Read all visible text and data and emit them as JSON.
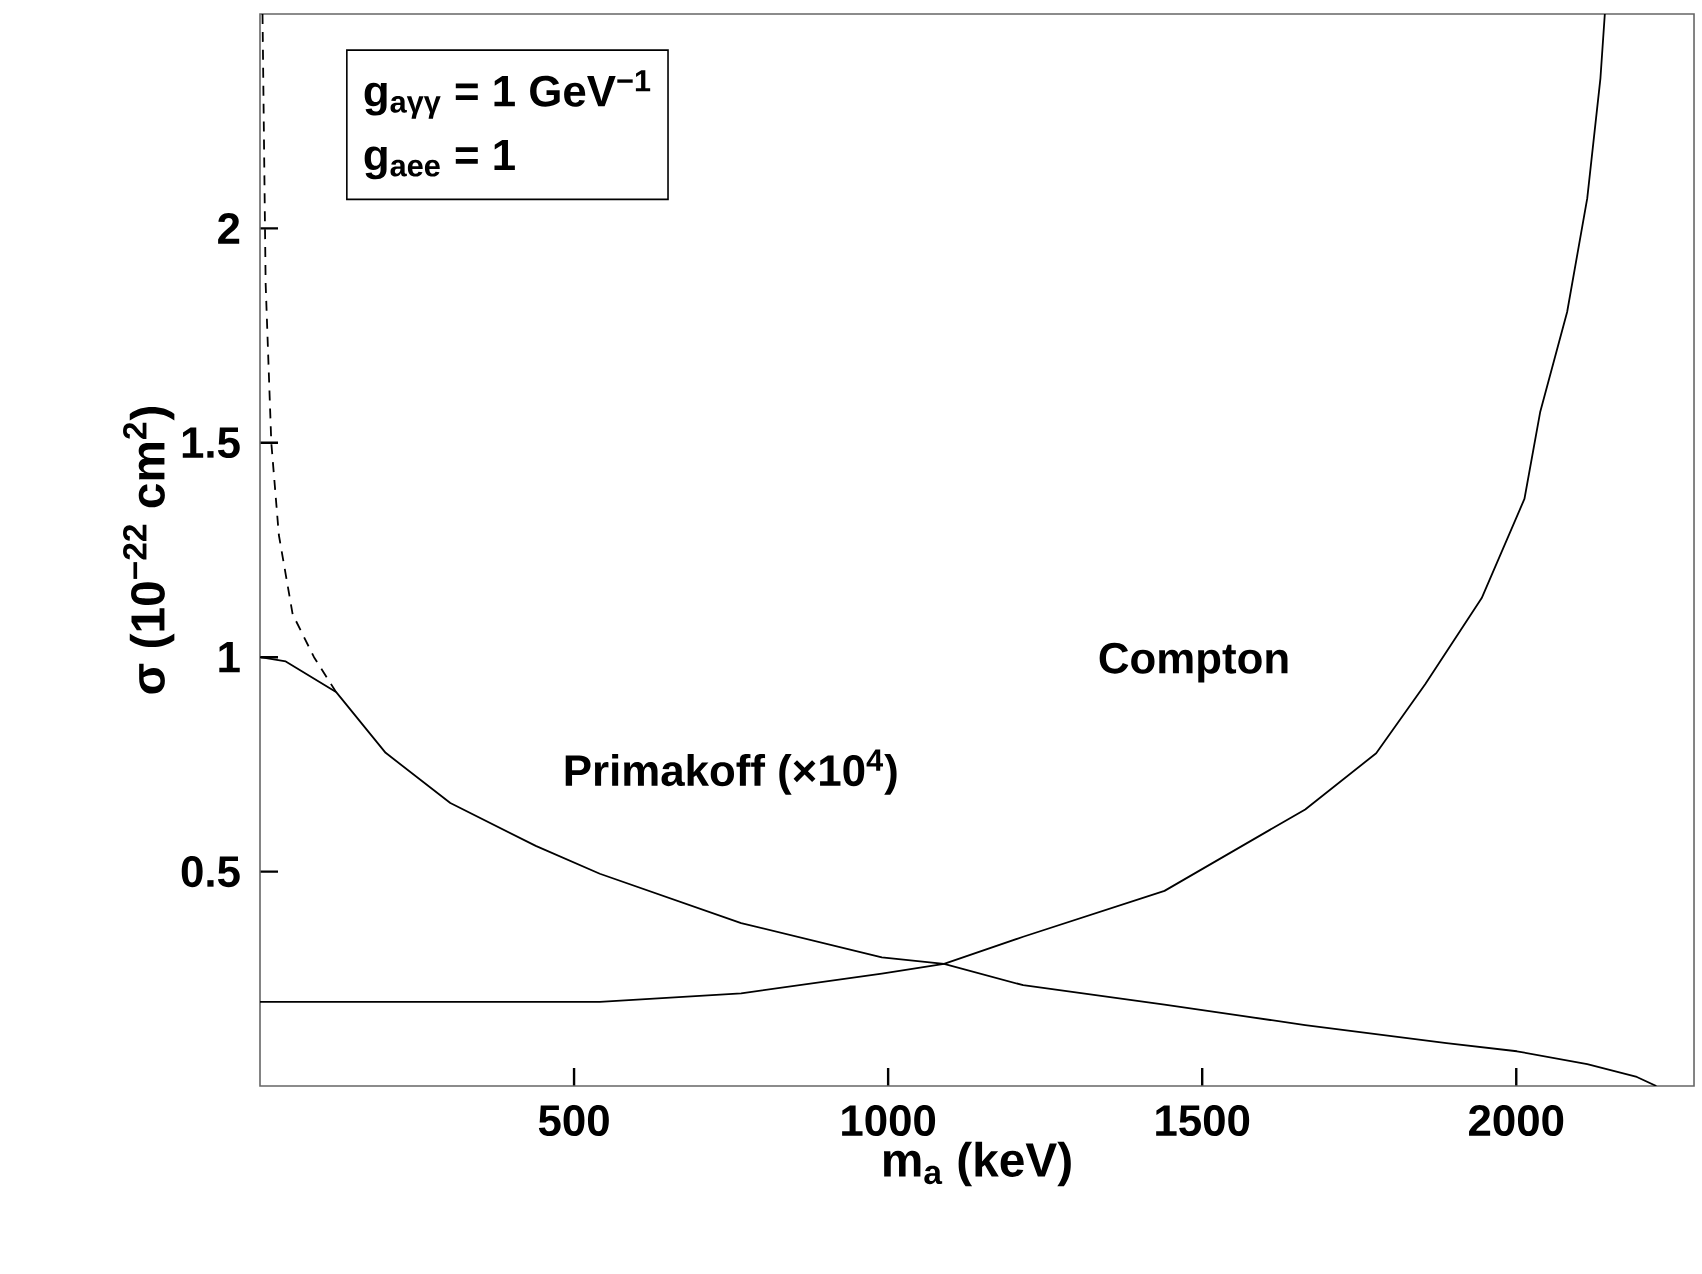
{
  "chart_data": {
    "type": "line",
    "xlabel": "m$_{a}$ (keV)",
    "ylabel": "σ (10$^{−22}$ cm$^{2}$)",
    "annotations": [
      "g$_{aγγ}$ = 1 GeV$^{−1}$",
      "g$_{aee}$ = 1"
    ],
    "xlim": [
      0,
      2283
    ],
    "ylim": [
      0,
      2.5
    ],
    "xticks": [
      500,
      1000,
      1500,
      2000
    ],
    "yticks": [
      0.5,
      1,
      1.5,
      2
    ],
    "series": [
      {
        "name": "Primakoff  (×10$^{4}$)",
        "color": "#000000",
        "line_style": "solid",
        "x": [
          0,
          41,
          121,
          200,
          303,
          439,
          541,
          766,
          990,
          1089,
          1215,
          1440,
          1664,
          1889,
          2001,
          2113,
          2192,
          2223
        ],
        "values": [
          1.0,
          0.99,
          0.919,
          0.777,
          0.66,
          0.56,
          0.495,
          0.38,
          0.3,
          0.285,
          0.235,
          0.19,
          0.142,
          0.1,
          0.081,
          0.051,
          0.021,
          0.0
        ]
      },
      {
        "name": "Compton",
        "color": "#000000",
        "line_style": "solid",
        "x": [
          0,
          250,
          541,
          766,
          990,
          1089,
          1215,
          1440,
          1664,
          1777,
          1855,
          1945,
          2013,
          2038,
          2081,
          2113,
          2134,
          2141
        ],
        "values": [
          0.196,
          0.196,
          0.196,
          0.216,
          0.262,
          0.285,
          0.348,
          0.455,
          0.645,
          0.776,
          0.937,
          1.138,
          1.369,
          1.571,
          1.805,
          2.07,
          2.35,
          2.5
        ]
      },
      {
        "color": "#000000",
        "line_style": "dashed",
        "x": [
          4,
          9,
          18,
          30,
          52,
          86,
          121
        ],
        "values": [
          2.5,
          1.87,
          1.5,
          1.285,
          1.1,
          1.0,
          0.919
        ]
      }
    ]
  }
}
